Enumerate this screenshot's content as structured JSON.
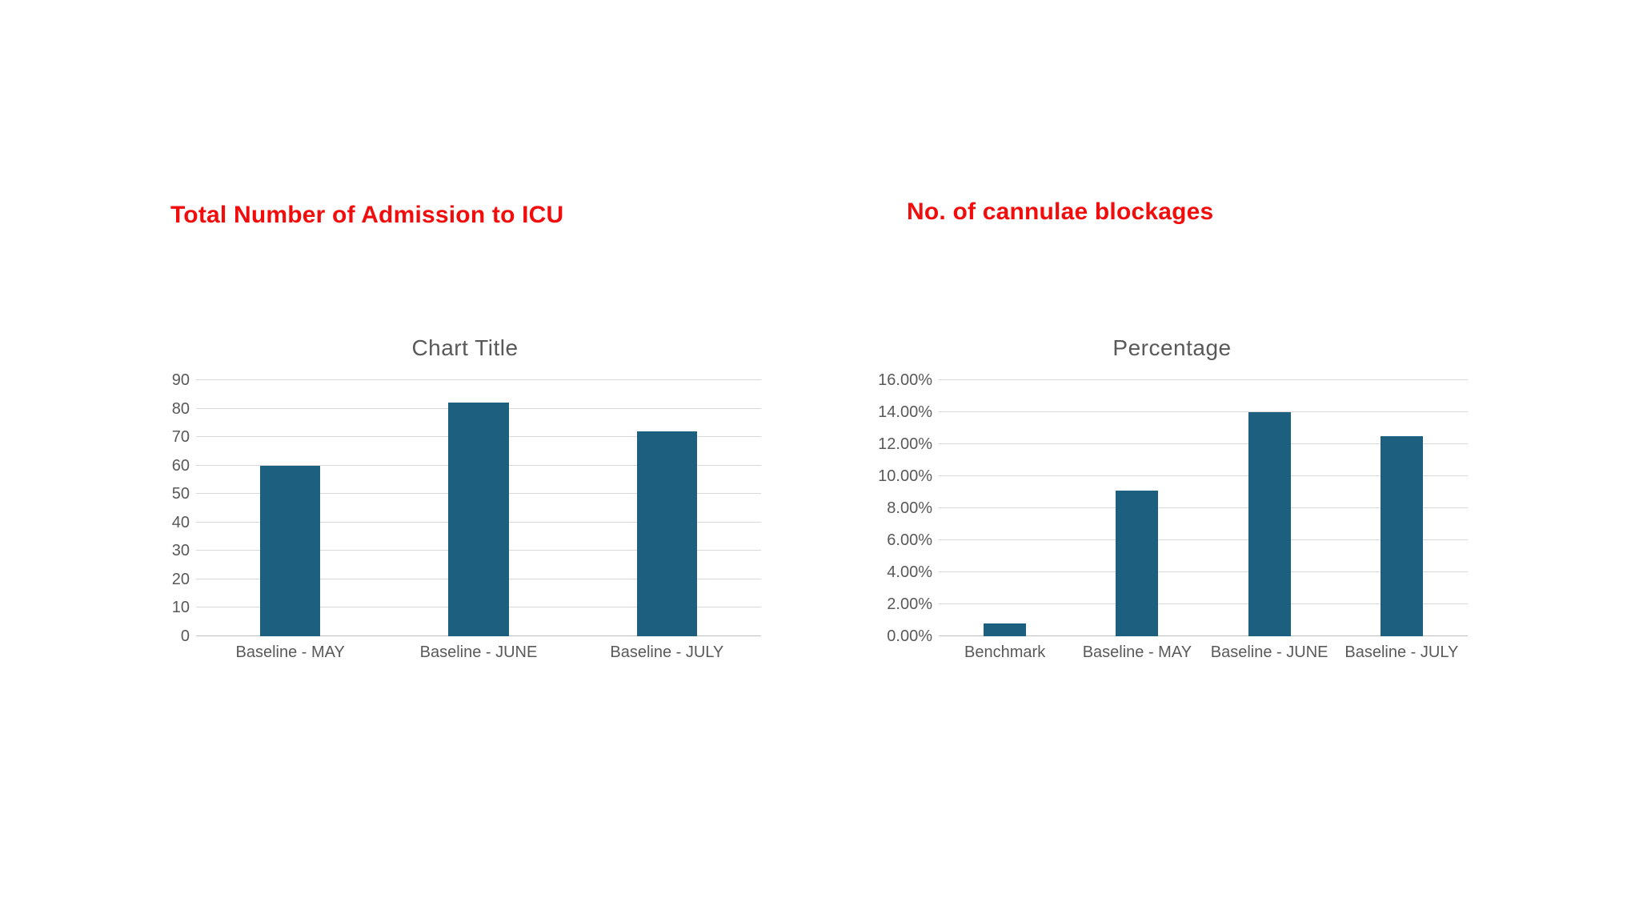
{
  "colors": {
    "heading": "#f20d0d",
    "bar": "#1d5f7f",
    "text": "#595959",
    "gridline": "#d9d9d9",
    "baseline": "#bfbfbf",
    "background": "#ffffff"
  },
  "chart_data": [
    {
      "type": "bar",
      "heading": "Total Number of Admission to ICU",
      "title": "Chart Title",
      "categories": [
        "Baseline - MAY",
        "Baseline - JUNE",
        "Baseline - JULY"
      ],
      "values": [
        60,
        82,
        72
      ],
      "xlabel": "",
      "ylabel": "",
      "ylim": [
        0,
        90
      ],
      "y_max": 90,
      "grid": true,
      "legend": false,
      "y_ticks": [
        {
          "value": 0,
          "label": "0"
        },
        {
          "value": 10,
          "label": "10"
        },
        {
          "value": 20,
          "label": "20"
        },
        {
          "value": 30,
          "label": "30"
        },
        {
          "value": 40,
          "label": "40"
        },
        {
          "value": 50,
          "label": "50"
        },
        {
          "value": 60,
          "label": "60"
        },
        {
          "value": 70,
          "label": "70"
        },
        {
          "value": 80,
          "label": "80"
        },
        {
          "value": 90,
          "label": "90"
        }
      ]
    },
    {
      "type": "bar",
      "heading": "No. of cannulae blockages",
      "title": "Percentage",
      "categories": [
        "Benchmark",
        "Baseline - MAY",
        "Baseline - JUNE",
        "Baseline - JULY"
      ],
      "values": [
        0.8,
        9.1,
        14.0,
        12.5
      ],
      "xlabel": "",
      "ylabel": "",
      "ylim": [
        0,
        16
      ],
      "y_max": 16,
      "grid": true,
      "legend": false,
      "y_ticks": [
        {
          "value": 0,
          "label": "0.00%"
        },
        {
          "value": 2,
          "label": "2.00%"
        },
        {
          "value": 4,
          "label": "4.00%"
        },
        {
          "value": 6,
          "label": "6.00%"
        },
        {
          "value": 8,
          "label": "8.00%"
        },
        {
          "value": 10,
          "label": "10.00%"
        },
        {
          "value": 12,
          "label": "12.00%"
        },
        {
          "value": 14,
          "label": "14.00%"
        },
        {
          "value": 16,
          "label": "16.00%"
        }
      ]
    }
  ]
}
